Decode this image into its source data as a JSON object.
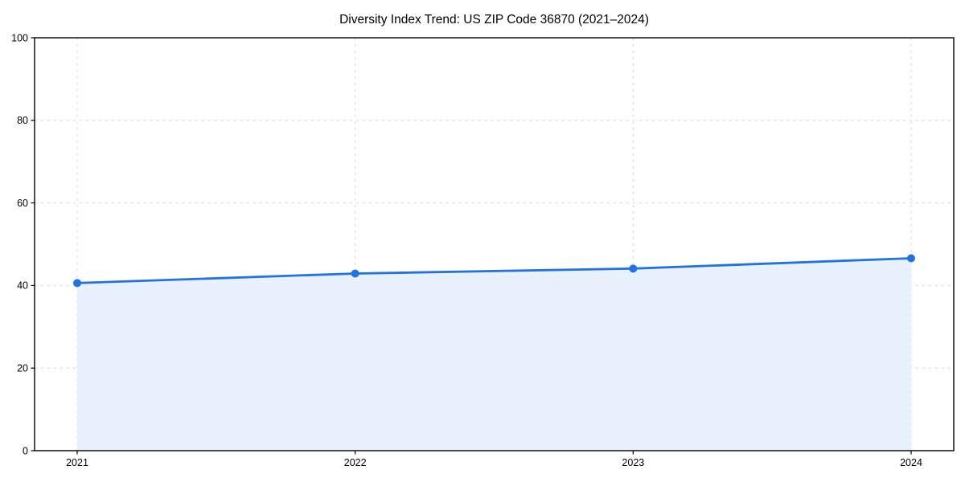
{
  "page": {
    "background": "#ffffff"
  },
  "chart_data": {
    "type": "line",
    "area_fill": true,
    "title": "Diversity Index Trend: US ZIP Code 36870 (2021–2024)",
    "x": [
      "2021",
      "2022",
      "2023",
      "2024"
    ],
    "series": [
      {
        "name": "Diversity Index",
        "values": [
          40.6,
          42.9,
          44.1,
          46.6
        ]
      }
    ],
    "xlabel": "",
    "ylabel": "",
    "ylim": [
      0,
      100
    ],
    "yticks": [
      0,
      20,
      40,
      60,
      80,
      100
    ],
    "grid": "dashed-both-axes",
    "legend": "none",
    "marker": "circle",
    "colors": {
      "line": "#2273e2",
      "marker": "#2273e2",
      "fill": "#e9f1fc",
      "grid": "#d9d9d9",
      "spine": "#000000",
      "text": "#000000"
    }
  }
}
